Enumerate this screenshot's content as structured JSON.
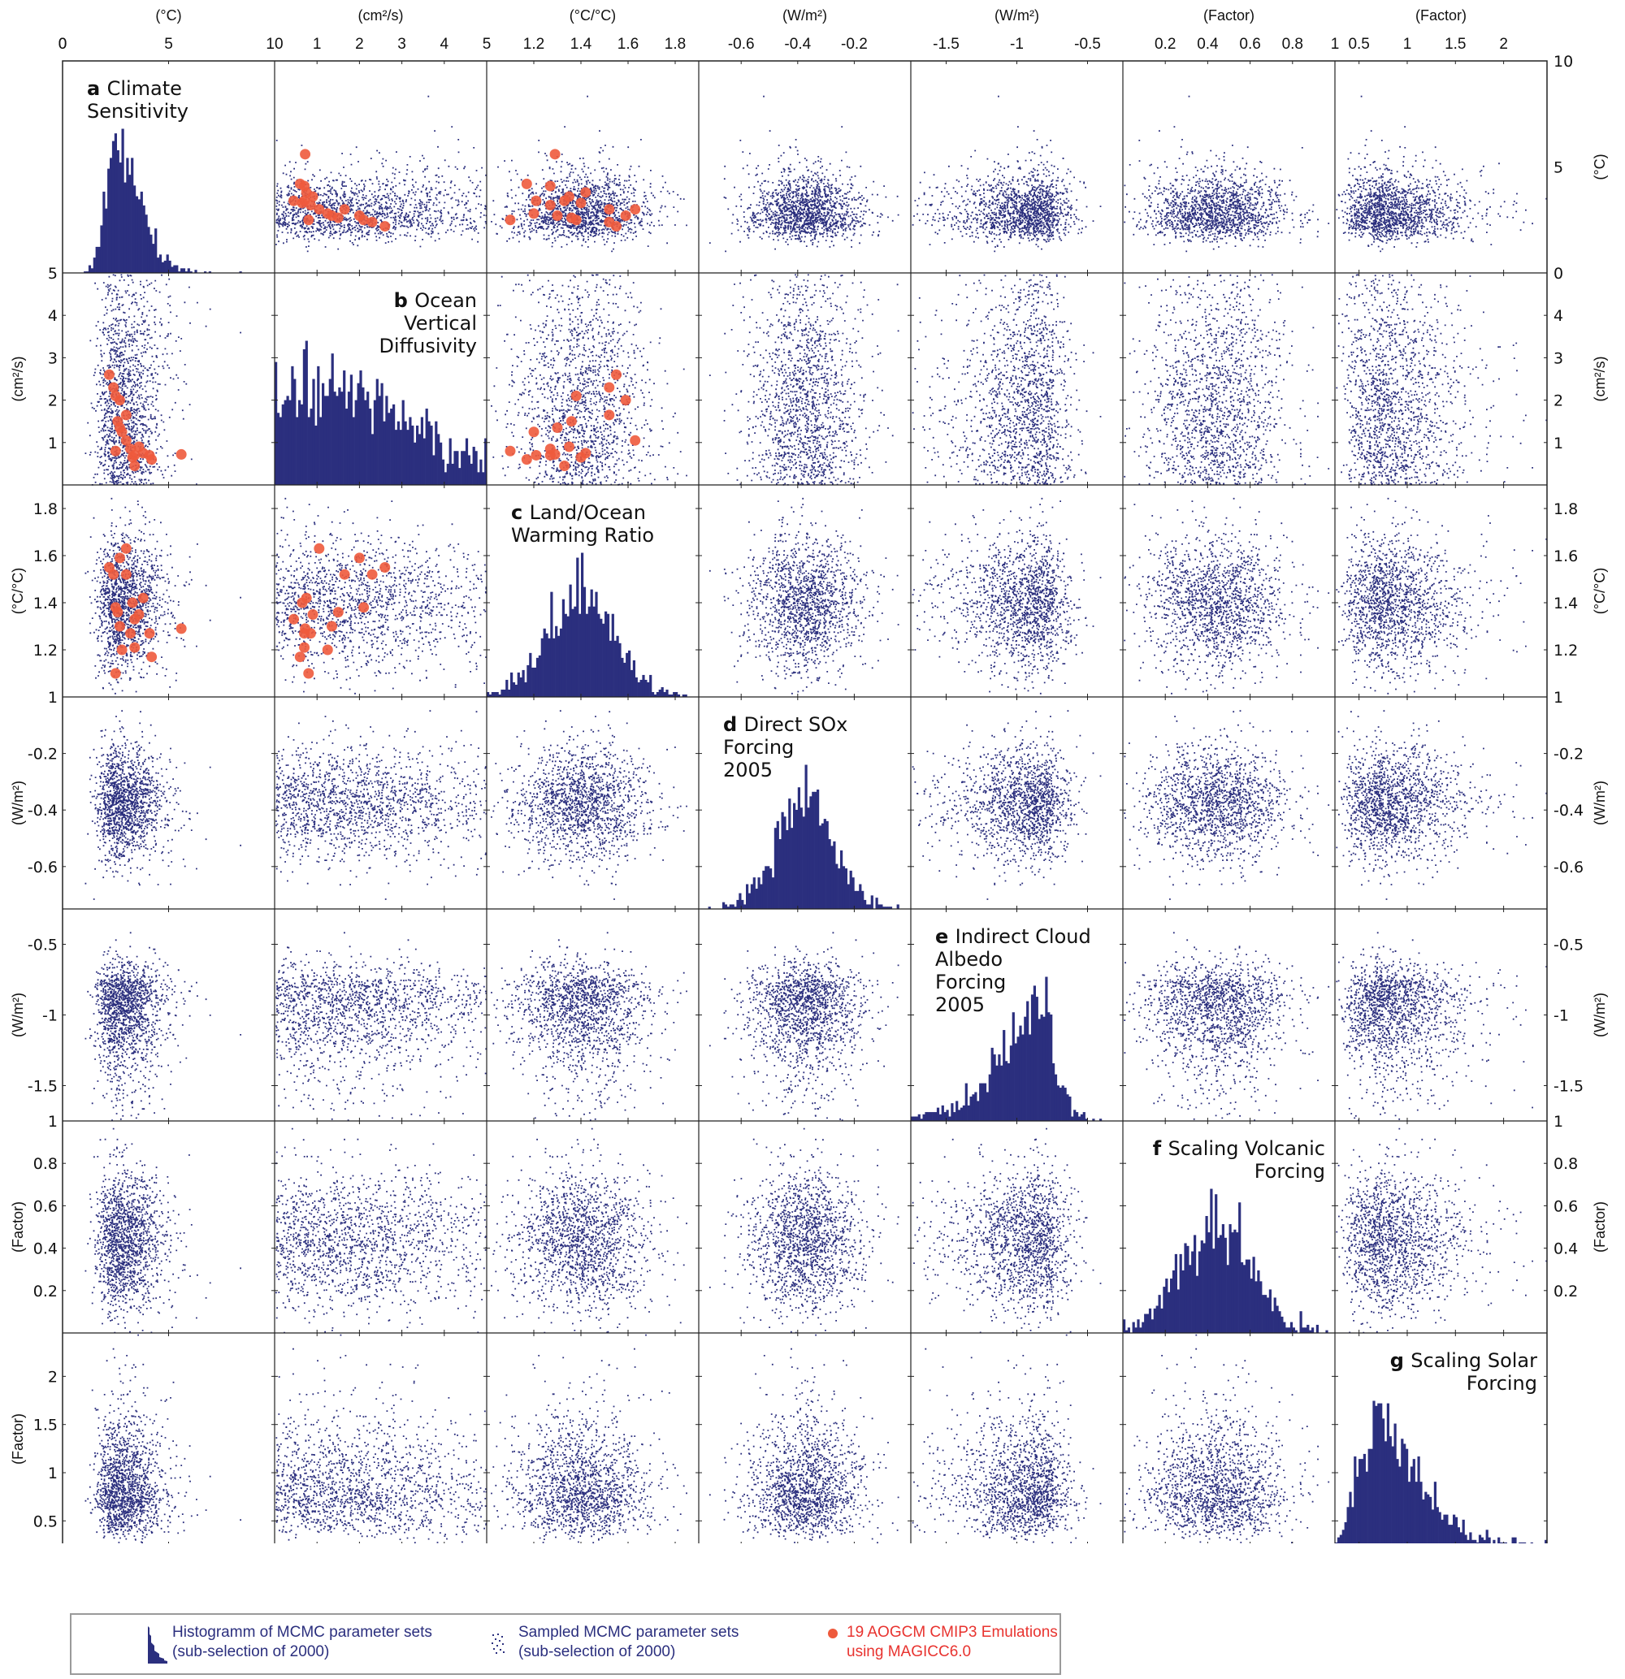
{
  "chart_data": {
    "type": "scatter",
    "title": "",
    "description": "Scatter-plot matrix of 7 MAGICC6.0 parameters: histograms on the diagonal, MCMC sampled parameter sets off-diagonal, 19 AOGCM CMIP3 emulations highlighted in red (only among parameters a, b, c).",
    "colors": {
      "samples": "#2b2f7e",
      "emulations": "#ee5a3c",
      "axis": "#222222"
    },
    "variables": [
      {
        "id": "a",
        "panel_label": "a",
        "name": "Climate Sensitivity",
        "name_lines": [
          "Climate",
          "Sensitivity"
        ],
        "unit": "(°C)",
        "range": [
          0,
          10
        ],
        "ticks": [
          0,
          5,
          10
        ],
        "tick_labels": [
          "0",
          "5",
          "10"
        ],
        "label_align": "left"
      },
      {
        "id": "b",
        "panel_label": "b",
        "name": "Ocean Vertical Diffusivity",
        "name_lines": [
          "Ocean",
          "Vertical",
          "Diffusivity"
        ],
        "unit": "(cm²/s)",
        "range": [
          0,
          5
        ],
        "ticks": [
          1,
          2,
          3,
          4,
          5
        ],
        "tick_labels": [
          "1",
          "2",
          "3",
          "4",
          "5"
        ],
        "label_align": "right-inset"
      },
      {
        "id": "c",
        "panel_label": "c",
        "name": "Land/Ocean Warming Ratio",
        "name_lines": [
          "Land/Ocean",
          "Warming Ratio"
        ],
        "unit": "(°C/°C)",
        "range": [
          1,
          1.9
        ],
        "ticks": [
          1.2,
          1.4,
          1.6,
          1.8
        ],
        "tick_labels": [
          "1.2",
          "1.4",
          "1.6",
          "1.8"
        ],
        "label_align": "left"
      },
      {
        "id": "d",
        "panel_label": "d",
        "name": "Direct SOx Forcing 2005",
        "name_lines": [
          "Direct SOx",
          "Forcing",
          "2005"
        ],
        "unit": "(W/m²)",
        "range": [
          -0.75,
          -0.0
        ],
        "ticks": [
          -0.6,
          -0.4,
          -0.2
        ],
        "tick_labels": [
          "-0.6",
          "-0.4",
          "-0.2"
        ],
        "label_align": "left"
      },
      {
        "id": "e",
        "panel_label": "e",
        "name": "Indirect Cloud Albedo Forcing 2005",
        "name_lines": [
          "Indirect Cloud",
          "Albedo",
          "Forcing",
          "2005"
        ],
        "unit": "(W/m²)",
        "range": [
          -1.75,
          -0.25
        ],
        "ticks": [
          -1.5,
          -1,
          -0.5
        ],
        "tick_labels": [
          "-1.5",
          "-1",
          "-0.5"
        ],
        "label_align": "left"
      },
      {
        "id": "f",
        "panel_label": "f",
        "name": "Scaling Volcanic Forcing",
        "name_lines": [
          "Scaling Volcanic",
          "Forcing"
        ],
        "unit": "(Factor)",
        "range": [
          0,
          1
        ],
        "ticks": [
          0.2,
          0.4,
          0.6,
          0.8,
          1
        ],
        "tick_labels": [
          "0.2",
          "0.4",
          "0.6",
          "0.8",
          "1"
        ],
        "label_align": "right"
      },
      {
        "id": "g",
        "panel_label": "g",
        "name": "Scaling Solar Forcing",
        "name_lines": [
          "Scaling Solar",
          "Forcing"
        ],
        "unit": "(Factor)",
        "range": [
          0.25,
          2.45
        ],
        "ticks": [
          0.5,
          1,
          1.5,
          2
        ],
        "tick_labels": [
          "0.5",
          "1",
          "1.5",
          "2"
        ],
        "label_align": "right"
      }
    ],
    "left_axis_tick_labels": [
      {
        "row": "b",
        "labels": [
          "5",
          "4",
          "3",
          "2",
          "1"
        ],
        "values": [
          5,
          4,
          3,
          2,
          1
        ]
      },
      {
        "row": "c",
        "labels": [
          "1.8",
          "1.6",
          "1.4",
          "1.2",
          "1"
        ],
        "values": [
          1.8,
          1.6,
          1.4,
          1.2,
          1
        ]
      },
      {
        "row": "d",
        "labels": [
          "-0.2",
          "-0.4",
          "-0.6"
        ],
        "values": [
          -0.2,
          -0.4,
          -0.6
        ]
      },
      {
        "row": "e",
        "labels": [
          "-0.5",
          "-1",
          "-1.5"
        ],
        "values": [
          -0.5,
          -1,
          -1.5
        ]
      },
      {
        "row": "f",
        "labels": [
          "1",
          "0.8",
          "0.6",
          "0.4",
          "0.2"
        ],
        "values": [
          1,
          0.8,
          0.6,
          0.4,
          0.2
        ]
      },
      {
        "row": "g",
        "labels": [
          "2",
          "1.5",
          "1",
          "0.5"
        ],
        "values": [
          2,
          1.5,
          1,
          0.5
        ]
      }
    ],
    "right_axis_tick_labels": [
      {
        "row": "a",
        "labels": [
          "10",
          "5",
          "0"
        ],
        "values": [
          10,
          5,
          0
        ]
      },
      {
        "row": "b",
        "labels": [
          "4",
          "3",
          "2",
          "1"
        ],
        "values": [
          4,
          3,
          2,
          1
        ]
      },
      {
        "row": "c",
        "labels": [
          "1.8",
          "1.6",
          "1.4",
          "1.2",
          "1"
        ],
        "values": [
          1.8,
          1.6,
          1.4,
          1.2,
          1
        ]
      },
      {
        "row": "d",
        "labels": [
          "-0.2",
          "-0.4",
          "-0.6"
        ],
        "values": [
          -0.2,
          -0.4,
          -0.6
        ]
      },
      {
        "row": "e",
        "labels": [
          "-0.5",
          "-1",
          "-1.5"
        ],
        "values": [
          -0.5,
          -1,
          -1.5
        ]
      },
      {
        "row": "f",
        "labels": [
          "1",
          "0.8",
          "0.6",
          "0.4",
          "0.2"
        ],
        "values": [
          1,
          0.8,
          0.6,
          0.4,
          0.2
        ]
      }
    ],
    "distributions": {
      "a": {
        "shape": "lognormal-right-skewed",
        "mode": 2.8,
        "spread": 0.7,
        "tail_to": 9
      },
      "b": {
        "shape": "broad-right-skewed",
        "mode": 1.7,
        "spread": 1.4,
        "tail_to": 5
      },
      "c": {
        "shape": "normal",
        "mean": 1.4,
        "sd": 0.14
      },
      "d": {
        "shape": "normal",
        "mean": -0.37,
        "sd": 0.1
      },
      "e": {
        "shape": "left-skewed",
        "mode": -0.75,
        "spread": 0.25,
        "tail_to": -1.75
      },
      "f": {
        "shape": "normal",
        "mean": 0.44,
        "sd": 0.17
      },
      "g": {
        "shape": "lognormal-right-skewed",
        "mode": 0.75,
        "spread": 0.3,
        "tail_to": 2.4
      }
    },
    "sample_count": 2000,
    "emulations_19": {
      "a": [
        2.2,
        2.4,
        2.5,
        2.6,
        2.7,
        2.8,
        3.0,
        3.2,
        3.3,
        3.4,
        3.6,
        3.8,
        4.1,
        4.2,
        5.6,
        2.7,
        3.0,
        2.5,
        3.4
      ],
      "b": [
        2.6,
        2.3,
        2.1,
        1.5,
        1.35,
        1.25,
        1.05,
        0.85,
        0.65,
        0.45,
        0.9,
        0.75,
        0.7,
        0.6,
        0.72,
        2.0,
        1.65,
        0.8,
        0.7
      ],
      "c": [
        1.55,
        1.52,
        1.38,
        1.36,
        1.3,
        1.2,
        1.63,
        1.27,
        1.4,
        1.33,
        1.35,
        1.42,
        1.27,
        1.17,
        1.29,
        1.59,
        1.52,
        1.1,
        1.21
      ]
    },
    "xlabel": "",
    "ylabel": "",
    "grid": false,
    "legend_position": "bottom-left"
  },
  "legend": {
    "histogram": {
      "line1": "Histogramm of MCMC parameter sets",
      "line2": "(sub-selection of 2000)"
    },
    "samples": {
      "line1": "Sampled MCMC parameter sets",
      "line2": "(sub-selection of 2000)"
    },
    "emulations": {
      "line1": "19 AOGCM CMIP3 Emulations",
      "line2": "using MAGICC6.0"
    }
  }
}
